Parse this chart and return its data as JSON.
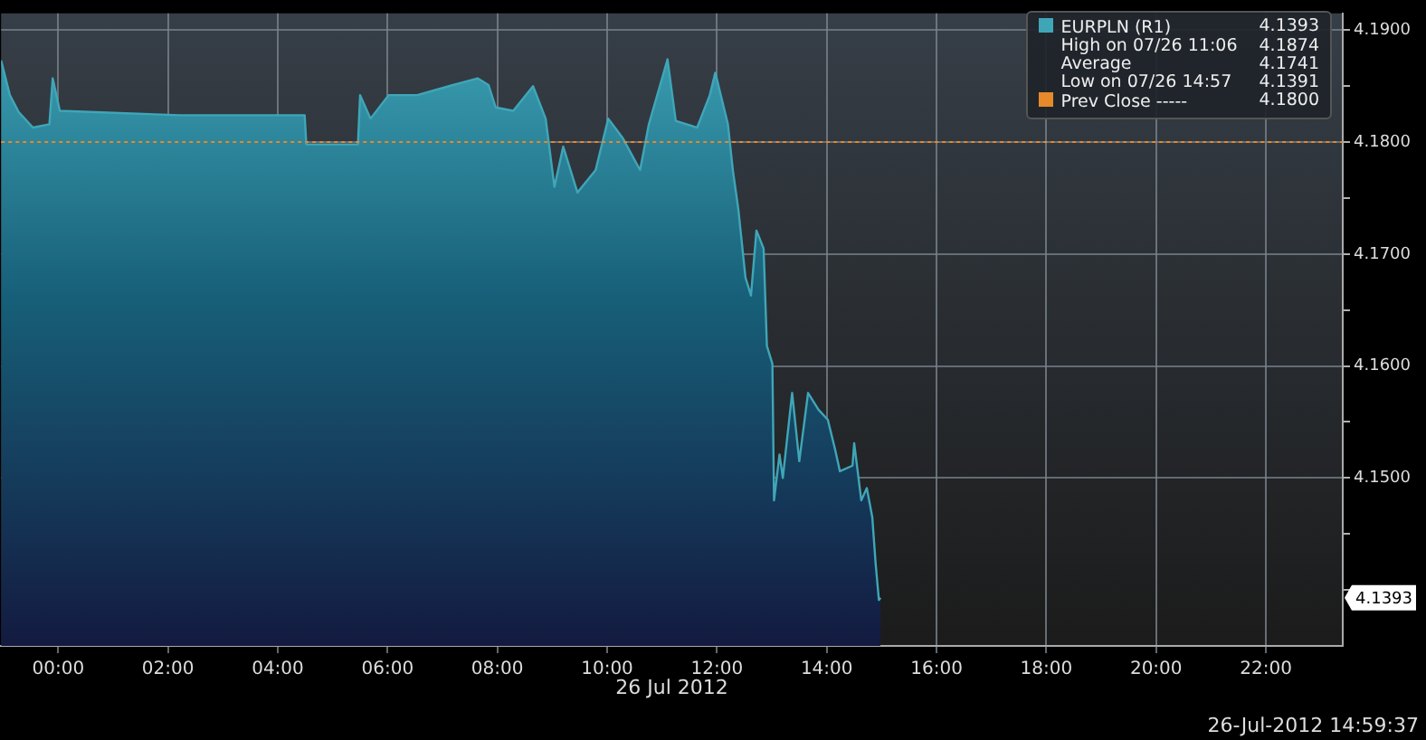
{
  "chart_data": {
    "type": "area",
    "xlabel": "26 Jul 2012",
    "legend": "top right",
    "grid": true,
    "x": [
      -1.04,
      -0.88,
      -0.72,
      -0.46,
      -0.16,
      -0.1,
      0.03,
      2.21,
      3.51,
      4.49,
      4.52,
      5.46,
      5.5,
      5.69,
      6.02,
      6.54,
      7.19,
      7.64,
      7.84,
      7.97,
      8.29,
      8.65,
      8.88,
      9.04,
      9.2,
      9.46,
      9.79,
      10.02,
      10.28,
      10.6,
      10.76,
      11.1,
      11.25,
      11.64,
      11.87,
      11.97,
      12.2,
      12.29,
      12.39,
      12.52,
      12.62,
      12.72,
      12.85,
      12.91,
      13.01,
      13.04,
      13.14,
      13.2,
      13.37,
      13.5,
      13.66,
      13.85,
      14.02,
      14.15,
      14.24,
      14.47,
      14.5,
      14.63,
      14.73,
      14.83,
      14.89,
      14.95,
      14.98
    ],
    "series": [
      {
        "name": "EURPLN (R1)",
        "color": "#3fa6b8",
        "values": [
          4.1873,
          4.1842,
          4.1827,
          4.1813,
          4.1816,
          4.1857,
          4.1828,
          4.1824,
          4.1824,
          4.1824,
          4.1798,
          4.1798,
          4.1842,
          4.1821,
          4.1842,
          4.1842,
          4.1851,
          4.1857,
          4.1851,
          4.1831,
          4.1828,
          4.185,
          4.1821,
          4.176,
          4.1796,
          4.1755,
          4.1775,
          4.1821,
          4.1804,
          4.1775,
          4.1816,
          4.1874,
          4.1819,
          4.1813,
          4.1842,
          4.1862,
          4.1816,
          4.1775,
          4.174,
          4.1679,
          4.1663,
          4.1721,
          4.1705,
          4.1618,
          4.1602,
          4.148,
          4.1521,
          4.15,
          4.1576,
          4.1515,
          4.1576,
          4.1561,
          4.1552,
          4.1526,
          4.1506,
          4.1511,
          4.1531,
          4.148,
          4.1491,
          4.1465,
          4.1424,
          4.1391,
          4.1393
        ]
      }
    ],
    "xlim": [
      -1.04,
      23.4
    ],
    "xticks": [
      {
        "value": 0,
        "label": "00:00"
      },
      {
        "value": 2,
        "label": "02:00"
      },
      {
        "value": 4,
        "label": "04:00"
      },
      {
        "value": 6,
        "label": "06:00"
      },
      {
        "value": 8,
        "label": "08:00"
      },
      {
        "value": 10,
        "label": "10:00"
      },
      {
        "value": 12,
        "label": "12:00"
      },
      {
        "value": 14,
        "label": "14:00"
      },
      {
        "value": 16,
        "label": "16:00"
      },
      {
        "value": 18,
        "label": "18:00"
      },
      {
        "value": 20,
        "label": "20:00"
      },
      {
        "value": 22,
        "label": "22:00"
      }
    ],
    "ylim": [
      4.135,
      4.1915
    ],
    "yticks": [
      {
        "value": 4.14,
        "label": null
      },
      {
        "value": 4.145,
        "label": null
      },
      {
        "value": 4.15,
        "label": "4.1500"
      },
      {
        "value": 4.155,
        "label": null
      },
      {
        "value": 4.16,
        "label": "4.1600"
      },
      {
        "value": 4.165,
        "label": null
      },
      {
        "value": 4.17,
        "label": "4.1700"
      },
      {
        "value": 4.175,
        "label": null
      },
      {
        "value": 4.18,
        "label": "4.1800"
      },
      {
        "value": 4.185,
        "label": null
      },
      {
        "value": 4.19,
        "label": "4.1900"
      }
    ],
    "ref_lines": [
      {
        "axis": "y",
        "value": 4.18,
        "label": "Prev Close ----- 4.1800",
        "color": "#e8892a",
        "line_style": "dotted"
      }
    ],
    "annotations": [
      "4.1393",
      "High on 07/26 11:06 4.1874",
      "Average 4.1741",
      "Low on 07/26 14:57 4.1391",
      "26-Jul-2012 14:59:37"
    ]
  }
}
